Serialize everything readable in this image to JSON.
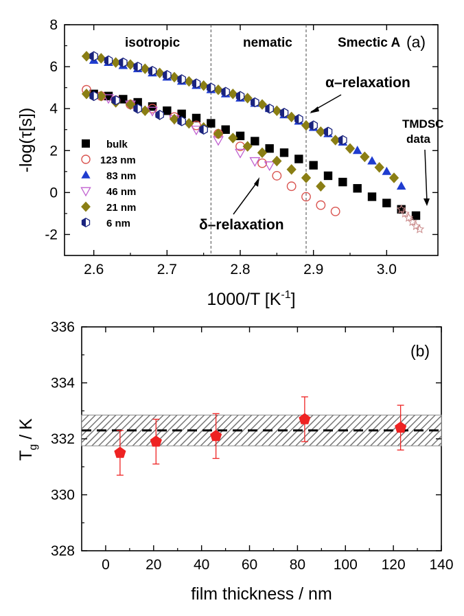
{
  "chart_data": [
    {
      "panel": "(a)",
      "type": "scatter",
      "xlabel": "1000/T [K⁻¹]",
      "xlabel_base": "1000/T [K",
      "xlabel_sup": "-1",
      "xlabel_end": "]",
      "ylabel": "-log(τ[s])",
      "xlim": [
        2.56,
        3.07
      ],
      "ylim": [
        -3,
        8
      ],
      "xticks": [
        "2.6",
        "2.7",
        "2.8",
        "2.9",
        "3.0"
      ],
      "xtick_values": [
        2.6,
        2.7,
        2.8,
        2.9,
        3.0
      ],
      "yticks": [
        "-2",
        "0",
        "2",
        "4",
        "6",
        "8"
      ],
      "ytick_values": [
        -2,
        0,
        2,
        4,
        6,
        8
      ],
      "phase_boundaries": [
        2.76,
        2.89
      ],
      "phase_labels": [
        "isotropic",
        "nematic",
        "Smectic A"
      ],
      "annotations": {
        "alpha": "α–relaxation",
        "delta": "δ–relaxation",
        "tmdsc_line1": "TMDSC",
        "tmdsc_line2": "data"
      },
      "legend_position": "left-center",
      "series": [
        {
          "name": "bulk",
          "marker": "square-filled",
          "color": "#000000",
          "points": [
            [
              2.6,
              4.7
            ],
            [
              2.62,
              4.6
            ],
            [
              2.64,
              4.45
            ],
            [
              2.66,
              4.3
            ],
            [
              2.68,
              4.1
            ],
            [
              2.7,
              3.9
            ],
            [
              2.72,
              3.75
            ],
            [
              2.74,
              3.55
            ],
            [
              2.76,
              3.3
            ],
            [
              2.78,
              3.0
            ],
            [
              2.8,
              2.7
            ],
            [
              2.82,
              2.45
            ],
            [
              2.84,
              2.1
            ],
            [
              2.86,
              1.9
            ],
            [
              2.88,
              1.6
            ],
            [
              2.9,
              1.3
            ],
            [
              2.92,
              0.8
            ],
            [
              2.94,
              0.5
            ],
            [
              2.96,
              0.2
            ],
            [
              2.98,
              -0.2
            ],
            [
              3.0,
              -0.5
            ],
            [
              3.02,
              -0.8
            ],
            [
              3.04,
              -1.1
            ]
          ]
        },
        {
          "name": "123 nm",
          "marker": "circle-open",
          "color": "#d9534f",
          "points": [
            [
              2.59,
              4.9
            ],
            [
              2.61,
              4.6
            ],
            [
              2.63,
              4.4
            ],
            [
              2.65,
              4.2
            ],
            [
              2.68,
              4.0
            ],
            [
              2.71,
              3.6
            ],
            [
              2.74,
              3.2
            ],
            [
              2.77,
              2.8
            ],
            [
              2.8,
              2.2
            ],
            [
              2.83,
              1.4
            ],
            [
              2.85,
              0.8
            ],
            [
              2.87,
              0.3
            ],
            [
              2.89,
              -0.2
            ],
            [
              2.91,
              -0.6
            ],
            [
              2.93,
              -0.9
            ]
          ]
        },
        {
          "name": "83 nm",
          "marker": "triangle-up-filled",
          "color": "#1f3ccf",
          "points": [
            [
              2.6,
              6.3
            ],
            [
              2.62,
              6.2
            ],
            [
              2.64,
              6.05
            ],
            [
              2.66,
              5.9
            ],
            [
              2.68,
              5.7
            ],
            [
              2.7,
              5.5
            ],
            [
              2.72,
              5.3
            ],
            [
              2.74,
              5.1
            ],
            [
              2.76,
              4.9
            ],
            [
              2.78,
              4.7
            ],
            [
              2.8,
              4.5
            ],
            [
              2.82,
              4.25
            ],
            [
              2.84,
              4.0
            ],
            [
              2.86,
              3.7
            ],
            [
              2.88,
              3.4
            ],
            [
              2.9,
              3.1
            ],
            [
              2.92,
              2.8
            ],
            [
              2.94,
              2.4
            ],
            [
              2.96,
              2.0
            ],
            [
              2.98,
              1.5
            ],
            [
              3.0,
              1.0
            ],
            [
              3.02,
              0.3
            ]
          ]
        },
        {
          "name": "46 nm",
          "marker": "triangle-down-open",
          "color": "#c060d0",
          "points": [
            [
              2.62,
              4.5
            ],
            [
              2.65,
              4.2
            ],
            [
              2.68,
              3.9
            ],
            [
              2.71,
              3.5
            ],
            [
              2.74,
              3.0
            ],
            [
              2.77,
              2.5
            ],
            [
              2.8,
              1.9
            ],
            [
              2.82,
              1.5
            ],
            [
              2.84,
              1.3
            ]
          ]
        },
        {
          "name": "21 nm",
          "marker": "diamond-filled",
          "color": "#8a7e14",
          "points": [
            [
              2.59,
              6.5
            ],
            [
              2.61,
              6.4
            ],
            [
              2.63,
              6.2
            ],
            [
              2.65,
              6.1
            ],
            [
              2.67,
              5.9
            ],
            [
              2.69,
              5.7
            ],
            [
              2.71,
              5.5
            ],
            [
              2.73,
              5.3
            ],
            [
              2.75,
              5.1
            ],
            [
              2.77,
              4.9
            ],
            [
              2.79,
              4.7
            ],
            [
              2.81,
              4.5
            ],
            [
              2.83,
              4.2
            ],
            [
              2.85,
              3.9
            ],
            [
              2.87,
              3.6
            ],
            [
              2.89,
              3.2
            ],
            [
              2.91,
              2.9
            ],
            [
              2.93,
              2.5
            ],
            [
              2.95,
              2.1
            ],
            [
              2.97,
              1.7
            ],
            [
              2.99,
              1.2
            ],
            [
              3.01,
              0.7
            ],
            [
              2.59,
              4.7
            ],
            [
              2.61,
              4.6
            ],
            [
              2.63,
              4.3
            ],
            [
              2.65,
              4.2
            ],
            [
              2.67,
              3.9
            ],
            [
              2.69,
              3.7
            ],
            [
              2.71,
              3.5
            ],
            [
              2.73,
              3.3
            ],
            [
              2.75,
              3.1
            ],
            [
              2.77,
              2.8
            ],
            [
              2.79,
              2.6
            ],
            [
              2.81,
              2.2
            ],
            [
              2.83,
              1.9
            ],
            [
              2.85,
              1.5
            ],
            [
              2.87,
              1.1
            ],
            [
              2.89,
              0.7
            ],
            [
              2.91,
              0.3
            ]
          ]
        },
        {
          "name": "6 nm",
          "marker": "hexagon-half",
          "color": "#1a237e",
          "points": [
            [
              2.6,
              6.5
            ],
            [
              2.62,
              6.3
            ],
            [
              2.64,
              6.2
            ],
            [
              2.66,
              6.0
            ],
            [
              2.68,
              5.8
            ],
            [
              2.7,
              5.6
            ],
            [
              2.72,
              5.4
            ],
            [
              2.74,
              5.2
            ],
            [
              2.76,
              5.0
            ],
            [
              2.78,
              4.8
            ],
            [
              2.8,
              4.6
            ],
            [
              2.82,
              4.3
            ],
            [
              2.84,
              4.0
            ],
            [
              2.86,
              3.8
            ],
            [
              2.88,
              3.5
            ],
            [
              2.9,
              3.2
            ],
            [
              2.92,
              2.9
            ],
            [
              2.94,
              2.5
            ],
            [
              2.6,
              4.6
            ],
            [
              2.63,
              4.4
            ],
            [
              2.66,
              4.0
            ],
            [
              2.69,
              3.7
            ],
            [
              2.72,
              3.4
            ],
            [
              2.75,
              3.0
            ]
          ]
        },
        {
          "name": "TMDSC data",
          "marker": "star-open",
          "color": "#c98a8a",
          "show_in_legend": false,
          "points": [
            [
              3.02,
              -0.8
            ],
            [
              3.025,
              -1.0
            ],
            [
              3.03,
              -1.2
            ],
            [
              3.035,
              -1.4
            ],
            [
              3.04,
              -1.6
            ],
            [
              3.045,
              -1.75
            ]
          ]
        }
      ]
    },
    {
      "panel": "(b)",
      "type": "scatter",
      "xlabel": "film thickness / nm",
      "ylabel": "Tg / K",
      "ylabel_base": "T",
      "ylabel_sub": "g",
      "ylabel_end": " / K",
      "xlim": [
        -10,
        140
      ],
      "ylim": [
        328,
        336
      ],
      "xticks": [
        "0",
        "20",
        "40",
        "60",
        "80",
        "100",
        "120",
        "140"
      ],
      "xtick_values": [
        0,
        20,
        40,
        60,
        80,
        100,
        120,
        140
      ],
      "yticks": [
        "328",
        "330",
        "332",
        "334",
        "336"
      ],
      "ytick_values": [
        328,
        330,
        332,
        334,
        336
      ],
      "bulk_tg": 332.3,
      "bulk_band": [
        331.75,
        332.85
      ],
      "series": [
        {
          "name": "",
          "marker": "pentagon-filled",
          "color": "#ee2222",
          "x": [
            6,
            21,
            46,
            83,
            123
          ],
          "y": [
            331.5,
            331.9,
            332.1,
            332.7,
            332.4
          ],
          "yerr": [
            0.8,
            0.8,
            0.8,
            0.8,
            0.8
          ]
        }
      ]
    }
  ]
}
